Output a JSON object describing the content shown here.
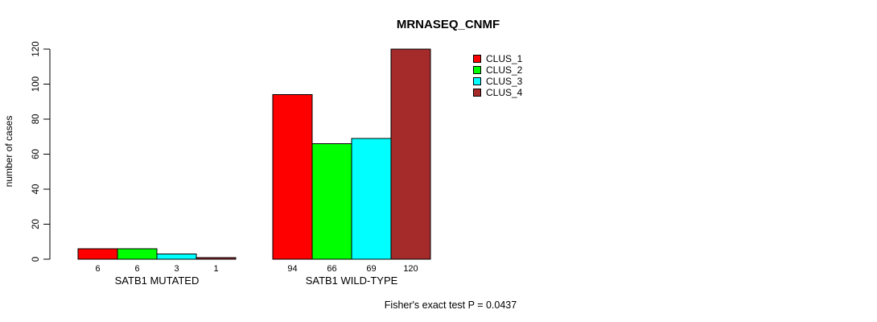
{
  "figure": {
    "background": "#ffffff",
    "text_color": "#000000",
    "axis_color": "#000000"
  },
  "chart_data": {
    "type": "bar",
    "title": "MRNASEQ_CNMF",
    "ylabel": "number of cases",
    "xlabel": "",
    "ylim": [
      0,
      120
    ],
    "yticks": [
      0,
      20,
      40,
      60,
      80,
      100,
      120
    ],
    "grid": false,
    "legend_position": "top-right",
    "categories": [
      "SATB1 MUTATED",
      "SATB1 WILD-TYPE"
    ],
    "series": [
      {
        "name": "CLUS_1",
        "color": "#FF0000",
        "values": [
          6,
          94
        ]
      },
      {
        "name": "CLUS_2",
        "color": "#00FF00",
        "values": [
          6,
          66
        ]
      },
      {
        "name": "CLUS_3",
        "color": "#00FFFF",
        "values": [
          3,
          69
        ]
      },
      {
        "name": "CLUS_4",
        "color": "#A52A2A",
        "values": [
          1,
          120
        ]
      }
    ],
    "bar_value_labels": [
      [
        6,
        6,
        3,
        1
      ],
      [
        94,
        66,
        69,
        120
      ]
    ],
    "bar_border_color": "#000000",
    "caption": "Fisher's exact test P = 0.0437"
  }
}
